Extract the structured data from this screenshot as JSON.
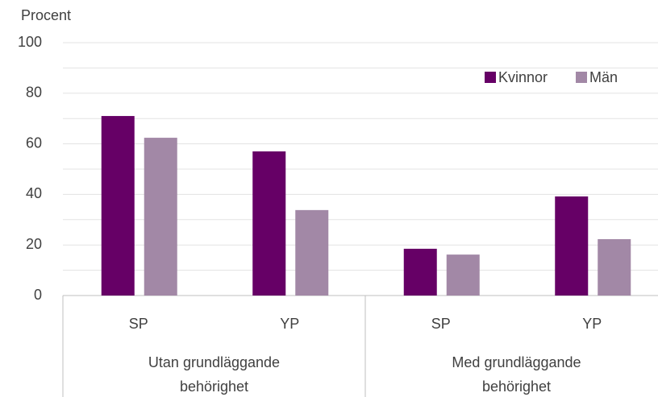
{
  "chart_data": {
    "type": "bar",
    "y_axis_title": "Procent",
    "categories": [
      "SP",
      "YP",
      "SP",
      "YP"
    ],
    "groups": [
      {
        "label": "Utan grundläggande behörighet",
        "span": 2
      },
      {
        "label": "Med grundläggande behörighet",
        "span": 2
      }
    ],
    "series": [
      {
        "name": "Kvinnor",
        "color": "#660066",
        "values": [
          71.0,
          57.0,
          18.5,
          39.2
        ]
      },
      {
        "name": "Män",
        "color": "#a288a6",
        "values": [
          62.4,
          33.8,
          16.2,
          22.3
        ]
      }
    ],
    "ylim": [
      0,
      100
    ],
    "yticks": [
      0,
      20,
      40,
      60,
      80,
      100
    ],
    "minor_yticks": [
      10,
      30,
      50,
      70,
      90
    ],
    "grid": true,
    "legend": "top-right"
  }
}
